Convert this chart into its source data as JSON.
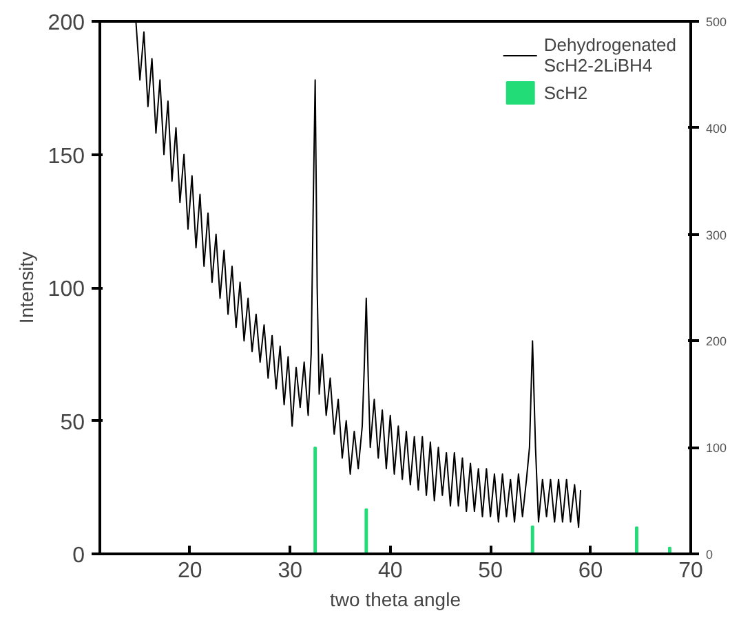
{
  "chart_data": {
    "type": "line",
    "xlabel": "two theta angle",
    "ylabel": "Intensity",
    "xlim": [
      11,
      70
    ],
    "xticks": [
      20,
      30,
      40,
      50,
      60,
      70
    ],
    "ylim": [
      0,
      200
    ],
    "yticks": [
      0,
      50,
      100,
      150,
      200
    ],
    "y2lim": [
      0,
      500
    ],
    "y2ticks": [
      0,
      100,
      200,
      300,
      400,
      500
    ],
    "grid": false,
    "legend": "top right",
    "marker": "none",
    "line_style": "solid",
    "series": [
      {
        "name": "Dehydrogenated\nScH2-2LiBH4",
        "color": "#000000",
        "x": [
          14.6,
          15.0,
          15.4,
          15.8,
          16.2,
          16.6,
          17.0,
          17.4,
          17.8,
          18.2,
          18.6,
          19.0,
          19.4,
          19.8,
          20.2,
          20.6,
          21.0,
          21.4,
          21.8,
          22.2,
          22.6,
          23.0,
          23.4,
          23.8,
          24.2,
          24.6,
          25.0,
          25.4,
          25.8,
          26.2,
          26.6,
          27.0,
          27.4,
          27.8,
          28.2,
          28.6,
          29.0,
          29.4,
          29.8,
          30.2,
          30.6,
          31.0,
          31.4,
          31.8,
          32.1,
          32.3,
          32.5,
          32.7,
          32.9,
          33.2,
          33.6,
          34.0,
          34.4,
          34.8,
          35.2,
          35.6,
          36.0,
          36.4,
          36.8,
          37.2,
          37.4,
          37.6,
          37.8,
          38.0,
          38.4,
          38.8,
          39.2,
          39.6,
          40.0,
          40.4,
          40.8,
          41.2,
          41.6,
          42.0,
          42.4,
          42.8,
          43.2,
          43.6,
          44.0,
          44.4,
          44.8,
          45.2,
          45.6,
          46.0,
          46.4,
          46.8,
          47.2,
          47.6,
          48.0,
          48.4,
          48.8,
          49.2,
          49.6,
          50.0,
          50.4,
          50.8,
          51.2,
          51.6,
          52.0,
          52.4,
          52.8,
          53.2,
          53.6,
          53.9,
          54.2,
          54.5,
          54.8,
          55.2,
          55.6,
          56.0,
          56.4,
          56.8,
          57.2,
          57.6,
          58.0,
          58.4,
          58.8,
          59.0
        ],
        "values": [
          200,
          178,
          196,
          168,
          186,
          158,
          178,
          150,
          170,
          140,
          160,
          132,
          150,
          122,
          142,
          115,
          135,
          108,
          128,
          102,
          120,
          96,
          114,
          90,
          108,
          85,
          102,
          80,
          96,
          76,
          90,
          72,
          86,
          66,
          82,
          62,
          78,
          56,
          74,
          48,
          70,
          55,
          72,
          52,
          75,
          130,
          178,
          100,
          60,
          75,
          52,
          66,
          45,
          58,
          36,
          50,
          30,
          46,
          32,
          48,
          70,
          96,
          66,
          40,
          58,
          36,
          54,
          32,
          52,
          30,
          48,
          28,
          46,
          26,
          44,
          24,
          44,
          22,
          42,
          20,
          40,
          22,
          38,
          18,
          38,
          18,
          36,
          16,
          34,
          16,
          32,
          14,
          32,
          14,
          30,
          12,
          30,
          14,
          28,
          12,
          30,
          14,
          28,
          40,
          80,
          40,
          12,
          28,
          14,
          28,
          12,
          28,
          12,
          28,
          12,
          26,
          10,
          24
        ]
      },
      {
        "name": "ScH2",
        "type": "bar",
        "axis": "y2",
        "color": "#22dd77",
        "x": [
          32.5,
          37.6,
          54.2,
          64.6,
          67.9
        ],
        "values": [
          100,
          42,
          26,
          25,
          6
        ]
      }
    ]
  }
}
